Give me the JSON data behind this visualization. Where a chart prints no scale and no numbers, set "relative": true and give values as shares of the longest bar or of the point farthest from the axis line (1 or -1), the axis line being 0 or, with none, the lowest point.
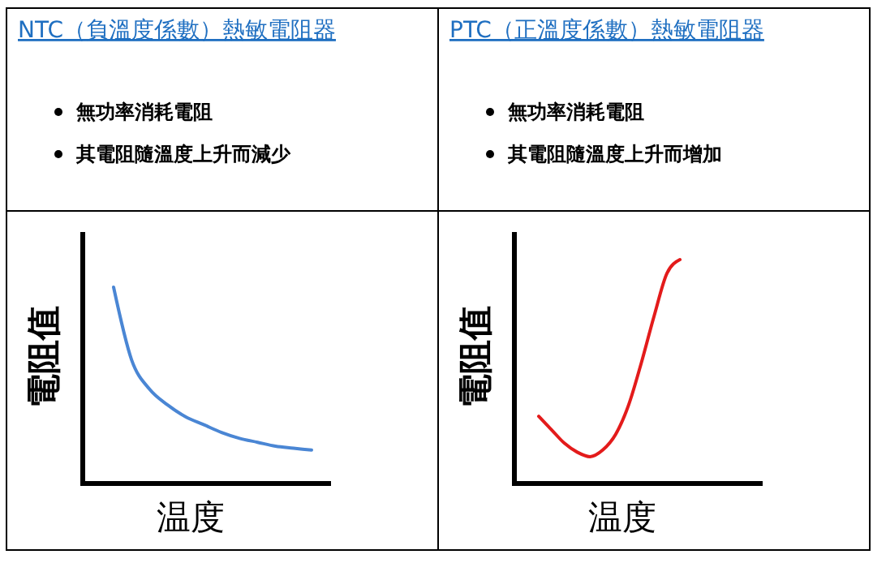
{
  "chart_data": [
    {
      "type": "other",
      "title": "NTC（負溫度係數）熱敏電阻器",
      "annotations": [
        "無功率消耗電阻",
        "其電阻隨溫度上升而減少"
      ]
    },
    {
      "type": "other",
      "title": "PTC（正溫度係數）熱敏電阻器",
      "annotations": [
        "無功率消耗電阻",
        "其電阻隨溫度上升而增加"
      ]
    },
    {
      "type": "line",
      "relative": true,
      "xlabel": "温度",
      "ylabel": "電阻值",
      "categories": [
        null,
        null,
        null,
        null,
        null,
        null,
        null,
        null,
        null,
        null,
        null,
        null
      ],
      "series": [
        {
          "color": "#4a86d4",
          "values": [
            1,
            0.63,
            0.48,
            0.4,
            0.34,
            0.3,
            0.26,
            0.23,
            0.21,
            0.19,
            0.18,
            0.17
          ]
        }
      ]
    },
    {
      "type": "line",
      "relative": true,
      "xlabel": "温度",
      "ylabel": "電阻值",
      "categories": [
        null,
        null,
        null,
        null,
        null,
        null,
        null,
        null,
        null,
        null,
        null,
        null
      ],
      "series": [
        {
          "color": "#e31b1b",
          "values": [
            0.3,
            0.24,
            0.18,
            0.14,
            0.12,
            0.15,
            0.22,
            0.35,
            0.54,
            0.75,
            0.94,
            1
          ]
        }
      ]
    }
  ]
}
